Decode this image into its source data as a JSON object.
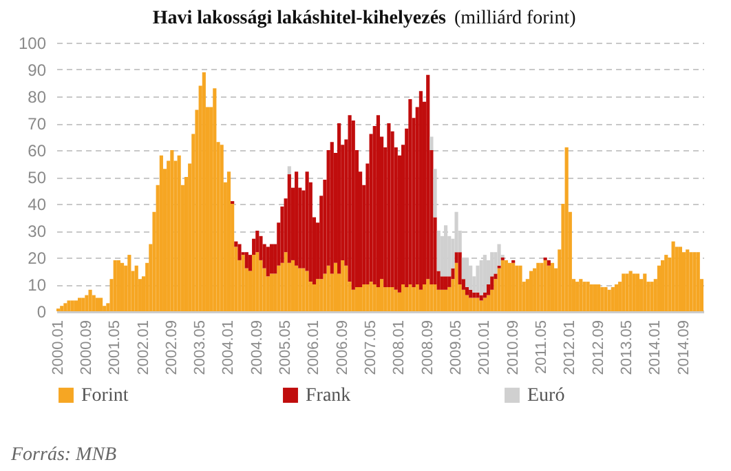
{
  "chart_data": {
    "type": "bar",
    "stacked": true,
    "title": "Havi lakossági lakáshitel-kihelyezés",
    "subtitle": "(milliárd forint)",
    "categories": [
      "2000.01",
      null,
      null,
      null,
      null,
      null,
      null,
      null,
      "2000.09",
      null,
      null,
      null,
      null,
      null,
      null,
      null,
      "2001.05",
      null,
      null,
      null,
      null,
      null,
      null,
      null,
      "2002.01",
      null,
      null,
      null,
      null,
      null,
      null,
      null,
      "2002.09",
      null,
      null,
      null,
      null,
      null,
      null,
      null,
      "2003.05",
      null,
      null,
      null,
      null,
      null,
      null,
      null,
      "2004.01",
      null,
      null,
      null,
      null,
      null,
      null,
      null,
      "2004.09",
      null,
      null,
      null,
      null,
      null,
      null,
      null,
      "2005.05",
      null,
      null,
      null,
      null,
      null,
      null,
      null,
      "2006.01",
      null,
      null,
      null,
      null,
      null,
      null,
      null,
      "2006.09",
      null,
      null,
      null,
      null,
      null,
      null,
      null,
      "2007.05",
      null,
      null,
      null,
      null,
      null,
      null,
      null,
      "2008.01",
      null,
      null,
      null,
      null,
      null,
      null,
      null,
      "2008.09",
      null,
      null,
      null,
      null,
      null,
      null,
      null,
      "2009.05",
      null,
      null,
      null,
      null,
      null,
      null,
      null,
      "2010.01",
      null,
      null,
      null,
      null,
      null,
      null,
      null,
      "2010.09",
      null,
      null,
      null,
      null,
      null,
      null,
      null,
      "2011.05",
      null,
      null,
      null,
      null,
      null,
      null,
      null,
      "2012.01",
      null,
      null,
      null,
      null,
      null,
      null,
      null,
      "2012.09",
      null,
      null,
      null,
      null,
      null,
      null,
      null,
      "2013.05",
      null,
      null,
      null,
      null,
      null,
      null,
      null,
      "2014.01",
      null,
      null,
      null,
      null,
      null,
      null,
      null,
      "2014.09",
      null,
      null,
      null,
      null,
      null
    ],
    "series": [
      {
        "name": "Forint",
        "color": "#f6a623",
        "values": [
          1,
          2,
          3,
          4,
          4,
          4,
          5,
          5,
          6,
          8,
          6,
          5,
          5,
          2,
          3,
          12,
          19,
          19,
          18,
          17,
          21,
          15,
          17,
          12,
          13,
          18,
          25,
          37,
          47,
          58,
          53,
          56,
          60,
          56,
          58,
          47,
          50,
          55,
          66,
          75,
          84,
          89,
          76,
          76,
          83,
          63,
          62,
          48,
          52,
          40,
          24,
          19,
          21,
          16,
          15,
          21,
          22,
          19,
          16,
          13,
          14,
          14,
          17,
          18,
          22,
          18,
          19,
          17,
          16,
          16,
          15,
          11,
          10,
          12,
          12,
          14,
          17,
          14,
          18,
          14,
          19,
          17,
          11,
          8,
          9,
          9,
          10,
          10,
          11,
          10,
          9,
          12,
          9,
          9,
          9,
          8,
          7,
          10,
          9,
          10,
          9,
          10,
          8,
          10,
          12,
          10,
          10,
          8,
          8,
          8,
          9,
          12,
          18,
          10,
          8,
          6,
          5,
          5,
          5,
          4,
          5,
          6,
          8,
          12,
          16,
          19,
          19,
          18,
          18,
          17,
          17,
          11,
          12,
          15,
          16,
          18,
          18,
          19,
          17,
          18,
          16,
          23,
          40,
          61,
          37,
          12,
          11,
          12,
          11,
          11,
          10,
          10,
          10,
          9,
          9,
          8,
          9,
          10,
          11,
          14,
          14,
          15,
          14,
          14,
          12,
          14,
          11,
          11,
          12,
          17,
          19,
          21,
          20,
          26,
          24,
          24,
          22,
          23,
          22,
          22,
          22,
          12
        ]
      },
      {
        "name": "Frank",
        "color": "#c00d0d",
        "values": [
          null,
          null,
          null,
          null,
          null,
          null,
          null,
          null,
          null,
          null,
          null,
          null,
          null,
          null,
          null,
          null,
          null,
          null,
          null,
          null,
          null,
          null,
          null,
          null,
          null,
          null,
          null,
          null,
          null,
          null,
          null,
          null,
          null,
          null,
          null,
          null,
          null,
          null,
          null,
          null,
          null,
          null,
          null,
          null,
          null,
          null,
          null,
          null,
          null,
          1,
          2,
          6,
          1,
          6,
          6,
          6,
          8,
          9,
          9,
          11,
          11,
          11,
          16,
          21,
          20,
          33,
          27,
          35,
          30,
          29,
          37,
          37,
          25,
          21,
          31,
          35,
          43,
          49,
          41,
          56,
          43,
          47,
          62,
          63,
          51,
          43,
          37,
          45,
          55,
          59,
          64,
          53,
          52,
          61,
          58,
          53,
          51,
          52,
          59,
          69,
          63,
          66,
          74,
          68,
          76,
          50,
          25,
          7,
          5,
          5,
          4,
          4,
          4,
          12,
          4,
          3,
          3,
          2,
          2,
          2,
          2,
          4,
          5,
          2,
          1,
          1,
          null,
          null,
          1,
          null,
          null,
          null,
          null,
          null,
          null,
          null,
          null,
          1,
          2,
          null,
          null,
          null,
          null,
          null,
          null,
          null,
          null,
          null,
          null,
          null,
          null,
          null,
          null,
          null,
          null,
          null,
          null,
          null,
          null,
          null,
          null,
          null,
          null,
          null,
          null,
          null,
          null,
          null,
          null,
          null,
          null,
          null,
          null,
          null,
          null,
          null,
          null,
          null,
          null,
          null,
          null,
          null
        ]
      },
      {
        "name": "Euró",
        "color": "#d0d0d0",
        "values": [
          null,
          null,
          null,
          null,
          null,
          null,
          null,
          null,
          null,
          null,
          null,
          null,
          null,
          null,
          null,
          null,
          null,
          null,
          null,
          null,
          null,
          null,
          null,
          null,
          null,
          null,
          null,
          null,
          null,
          null,
          null,
          null,
          null,
          null,
          null,
          null,
          null,
          null,
          null,
          null,
          null,
          null,
          null,
          null,
          null,
          null,
          null,
          null,
          null,
          null,
          null,
          null,
          null,
          null,
          null,
          null,
          null,
          null,
          null,
          null,
          null,
          null,
          null,
          null,
          null,
          3,
          null,
          null,
          null,
          null,
          null,
          null,
          null,
          null,
          null,
          null,
          null,
          null,
          null,
          null,
          null,
          null,
          null,
          null,
          null,
          null,
          null,
          null,
          null,
          null,
          null,
          null,
          null,
          null,
          null,
          null,
          null,
          null,
          null,
          null,
          null,
          null,
          null,
          null,
          null,
          5,
          18,
          15,
          15,
          19,
          15,
          11,
          15,
          8,
          8,
          11,
          9,
          6,
          10,
          13,
          14,
          9,
          9,
          8,
          8,
          1,
          null,
          null,
          null,
          null,
          null,
          null,
          null,
          null,
          null,
          null,
          null,
          null,
          null,
          null,
          null,
          null,
          null,
          null,
          null,
          null,
          null,
          null,
          null,
          null,
          null,
          null,
          null,
          null,
          null,
          null,
          null,
          null,
          null,
          null,
          null,
          null,
          null,
          null,
          null,
          null,
          null,
          null,
          null,
          null,
          null,
          null,
          null,
          null,
          null,
          null,
          null,
          null,
          null,
          null,
          null,
          null
        ]
      }
    ],
    "ylim": [
      0,
      100
    ],
    "yticks": [
      0,
      10,
      20,
      30,
      40,
      50,
      60,
      70,
      80,
      90,
      100
    ],
    "grid": "y",
    "legend": "bottom",
    "annotations": [
      "Forrás: MNB"
    ]
  }
}
